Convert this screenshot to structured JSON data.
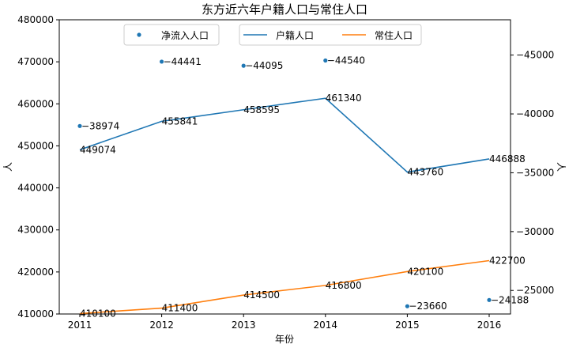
{
  "chart_data": {
    "type": "line",
    "title": "东方近六年户籍人口与常住人口",
    "xlabel": "年份",
    "ylabel_left": "人",
    "ylabel_right": "人",
    "x": [
      "2011",
      "2012",
      "2013",
      "2014",
      "2015",
      "2016"
    ],
    "left_axis": {
      "ylim": [
        410000,
        480000
      ],
      "ticks": [
        410000,
        420000,
        430000,
        440000,
        450000,
        460000,
        470000,
        480000
      ]
    },
    "right_axis": {
      "ylim": [
        -23000,
        -48000
      ],
      "inverted": true,
      "ticks": [
        -25000,
        -30000,
        -35000,
        -40000,
        -45000
      ]
    },
    "series": [
      {
        "name": "净流入人口",
        "style": "scatter",
        "axis": "right",
        "color": "#1f77b4",
        "values": [
          -38974,
          -44441,
          -44095,
          -44540,
          -23660,
          -24188
        ],
        "labels": [
          "-38974",
          "-44441",
          "-44095",
          "-44540",
          "-23660",
          "-24188"
        ]
      },
      {
        "name": "户籍人口",
        "style": "line",
        "axis": "left",
        "color": "#1f77b4",
        "values": [
          449074,
          455841,
          458595,
          461340,
          443760,
          446888
        ],
        "labels": [
          "449074",
          "455841",
          "458595",
          "461340",
          "443760",
          "446888"
        ]
      },
      {
        "name": "常住人口",
        "style": "line",
        "axis": "left",
        "color": "#ff7f0e",
        "values": [
          410100,
          411400,
          414500,
          416800,
          420100,
          422700
        ],
        "labels": [
          "410100",
          "411400",
          "414500",
          "416800",
          "420100",
          "422700"
        ]
      }
    ],
    "legend": {
      "placement": "top-center",
      "frame": true
    },
    "grid": false
  }
}
